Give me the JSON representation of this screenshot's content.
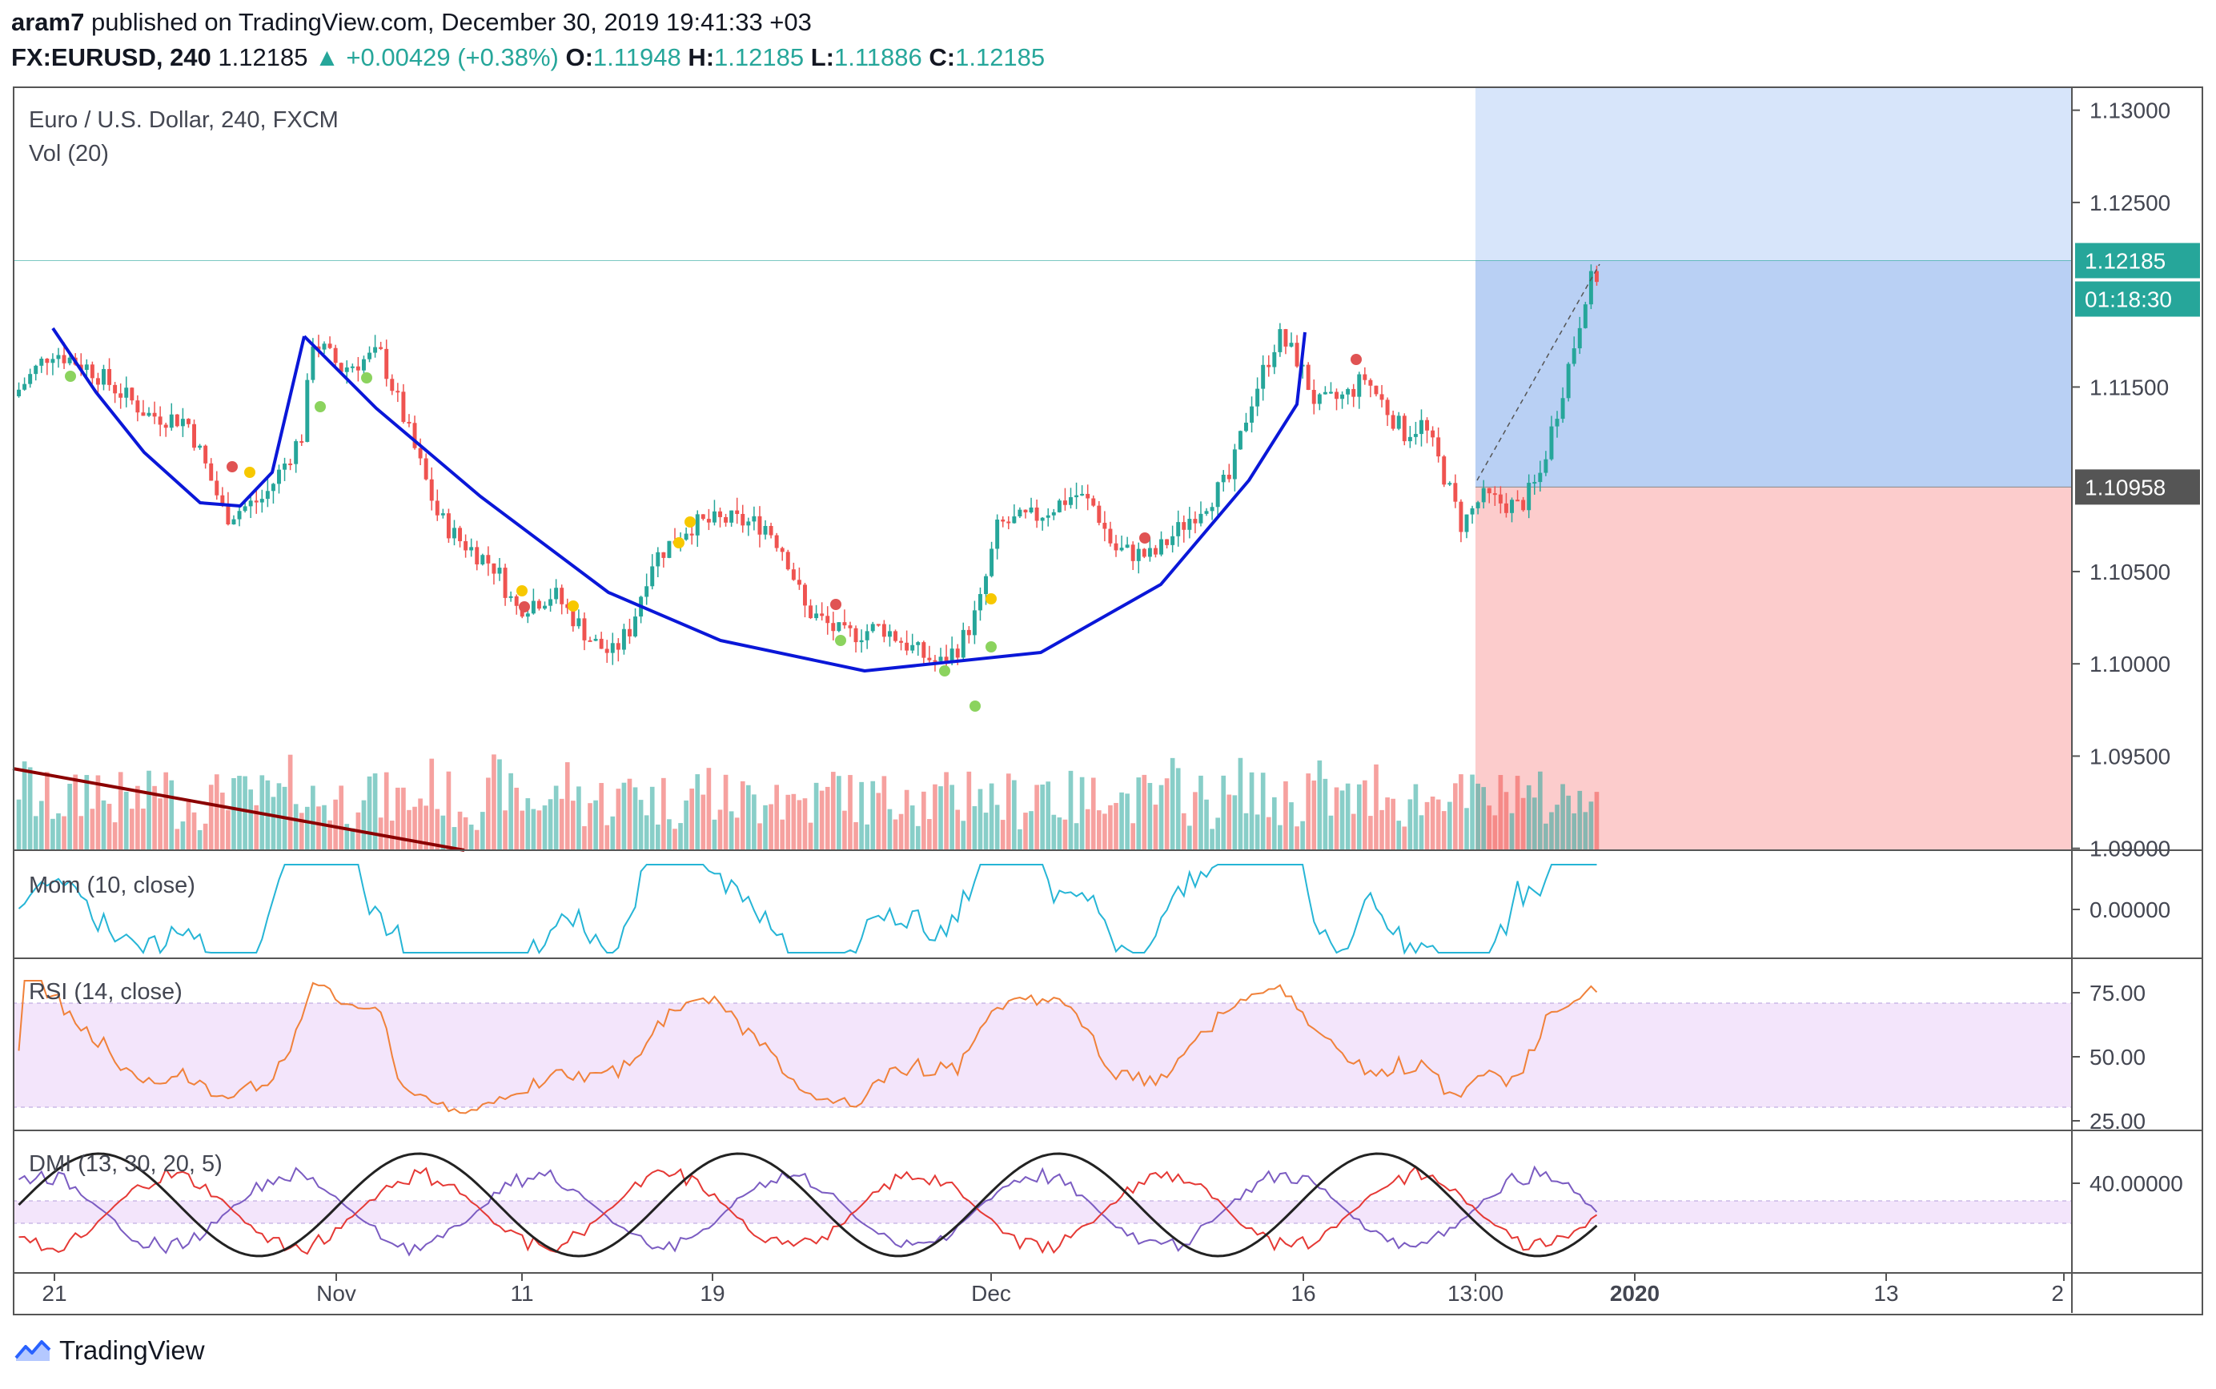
{
  "header": {
    "author": "aram7",
    "published_text": "published on TradingView.com, December 30, 2019 19:41:33 +03",
    "symbol": "FX:EURUSD, 240",
    "last": "1.12185",
    "change": "+0.00429 (+0.38%)",
    "o_label": "O:",
    "o_value": "1.11948",
    "h_label": "H:",
    "h_value": "1.12185",
    "l_label": "L:",
    "l_value": "1.11886",
    "c_label": "C:",
    "c_value": "1.12185"
  },
  "panes": {
    "main_title": "Euro / U.S. Dollar, 240, FXCM",
    "vol_title": "Vol (20)",
    "mom_title": "Mom (10, close)",
    "rsi_title": "RSI (14, close)",
    "dmi_title": "DMI (13, 30, 20, 5)"
  },
  "price_axis": {
    "ticks": [
      "1.13000",
      "1.12500",
      "1.12185",
      "1.11500",
      "1.10958",
      "1.10500",
      "1.10000",
      "1.09500",
      "1.09000"
    ],
    "last_price_badge": "1.12185",
    "countdown_badge": "01:18:30",
    "entry_badge": "1.10958"
  },
  "mom_axis": {
    "ticks": [
      "0.00000"
    ]
  },
  "rsi_axis": {
    "ticks": [
      "75.00",
      "50.00",
      "25.00"
    ]
  },
  "dmi_axis": {
    "ticks": [
      "40.00000"
    ]
  },
  "time_axis": {
    "labels": [
      "21",
      "Nov",
      "11",
      "19",
      "Dec",
      "16",
      "13:00",
      "2020",
      "13",
      "2"
    ]
  },
  "colors": {
    "up": "#26a69a",
    "down": "#ef5350",
    "cup_line": "#0a17d8",
    "trend_line": "#8b0000",
    "target_zone": "#bcd3f7",
    "stop_zone": "#fcc7c7",
    "mom_line": "#26b5d6",
    "rsi_line": "#f0813a",
    "rsi_band": "#f3e5fb",
    "dmi_adx": "#222222",
    "dmi_plus": "#7b5cc2",
    "dmi_minus": "#e53935"
  },
  "footer": {
    "brand": "TradingView",
    "logo_icon": "tradingview-logo-icon"
  },
  "chart_data": {
    "type": "candlestick",
    "symbol": "EURUSD",
    "timeframe": "240",
    "ylim": [
      1.0899,
      1.1312
    ],
    "last_price": 1.12185,
    "position": {
      "entry": 1.10958,
      "target": 1.1312,
      "stop": 1.0899
    },
    "anchors": [
      {
        "t": 0.0,
        "p": 1.1145
      },
      {
        "t": 0.02,
        "p": 1.117
      },
      {
        "t": 0.04,
        "p": 1.116
      },
      {
        "t": 0.07,
        "p": 1.1135
      },
      {
        "t": 0.09,
        "p": 1.1132
      },
      {
        "t": 0.11,
        "p": 1.108
      },
      {
        "t": 0.13,
        "p": 1.109
      },
      {
        "t": 0.15,
        "p": 1.1125
      },
      {
        "t": 0.155,
        "p": 1.1176
      },
      {
        "t": 0.17,
        "p": 1.116
      },
      {
        "t": 0.19,
        "p": 1.1168
      },
      {
        "t": 0.2,
        "p": 1.114
      },
      {
        "t": 0.22,
        "p": 1.108
      },
      {
        "t": 0.23,
        "p": 1.1068
      },
      {
        "t": 0.25,
        "p": 1.1052
      },
      {
        "t": 0.26,
        "p": 1.103
      },
      {
        "t": 0.28,
        "p": 1.1038
      },
      {
        "t": 0.3,
        "p": 1.1012
      },
      {
        "t": 0.31,
        "p": 1.1005
      },
      {
        "t": 0.32,
        "p": 1.102
      },
      {
        "t": 0.33,
        "p": 1.1055
      },
      {
        "t": 0.35,
        "p": 1.1075
      },
      {
        "t": 0.37,
        "p": 1.1078
      },
      {
        "t": 0.39,
        "p": 1.1075
      },
      {
        "t": 0.4,
        "p": 1.106
      },
      {
        "t": 0.41,
        "p": 1.103
      },
      {
        "t": 0.43,
        "p": 1.1015
      },
      {
        "t": 0.45,
        "p": 1.102
      },
      {
        "t": 0.47,
        "p": 1.1005
      },
      {
        "t": 0.48,
        "p": 1.1
      },
      {
        "t": 0.49,
        "p": 1.101
      },
      {
        "t": 0.5,
        "p": 1.103
      },
      {
        "t": 0.51,
        "p": 1.1075
      },
      {
        "t": 0.53,
        "p": 1.108
      },
      {
        "t": 0.55,
        "p": 1.1092
      },
      {
        "t": 0.56,
        "p": 1.1085
      },
      {
        "t": 0.57,
        "p": 1.1062
      },
      {
        "t": 0.59,
        "p": 1.1058
      },
      {
        "t": 0.61,
        "p": 1.108
      },
      {
        "t": 0.63,
        "p": 1.11
      },
      {
        "t": 0.64,
        "p": 1.114
      },
      {
        "t": 0.655,
        "p": 1.1178
      },
      {
        "t": 0.665,
        "p": 1.1165
      },
      {
        "t": 0.675,
        "p": 1.114
      },
      {
        "t": 0.69,
        "p": 1.1145
      },
      {
        "t": 0.7,
        "p": 1.1155
      },
      {
        "t": 0.71,
        "p": 1.114
      },
      {
        "t": 0.72,
        "p": 1.1125
      },
      {
        "t": 0.73,
        "p": 1.113
      },
      {
        "t": 0.74,
        "p": 1.1105
      },
      {
        "t": 0.75,
        "p": 1.1075
      },
      {
        "t": 0.76,
        "p": 1.109
      },
      {
        "t": 0.78,
        "p": 1.1085
      },
      {
        "t": 0.79,
        "p": 1.11
      },
      {
        "t": 0.81,
        "p": 1.118
      },
      {
        "t": 0.815,
        "p": 1.1205
      },
      {
        "t": 0.82,
        "p": 1.121
      }
    ]
  }
}
